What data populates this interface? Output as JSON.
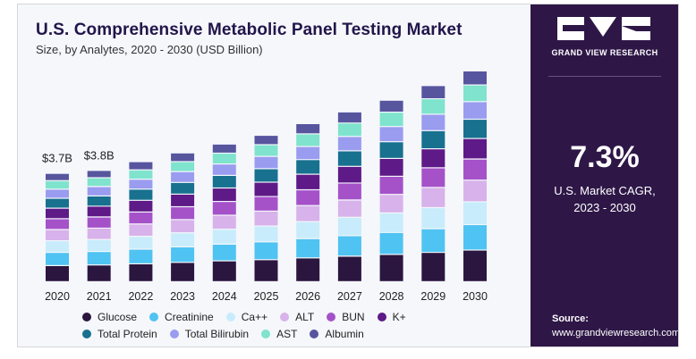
{
  "header": {
    "title": "U.S. Comprehensive Metabolic Panel Testing Market",
    "subtitle": "Size, by Analytes, 2020 - 2030 (USD Billion)"
  },
  "chart_data": {
    "type": "bar",
    "stacked": true,
    "categories": [
      "2020",
      "2021",
      "2022",
      "2023",
      "2024",
      "2025",
      "2026",
      "2027",
      "2028",
      "2029",
      "2030"
    ],
    "totals": [
      3.7,
      3.8,
      4.1,
      4.4,
      4.7,
      5.0,
      5.4,
      5.8,
      6.2,
      6.7,
      7.2
    ],
    "data_labels": [
      {
        "category": "2020",
        "text": "$3.7B"
      },
      {
        "category": "2021",
        "text": "$3.8B"
      }
    ],
    "series": [
      {
        "name": "Glucose",
        "color": "#2b1640",
        "values": [
          0.55,
          0.57,
          0.61,
          0.66,
          0.71,
          0.75,
          0.81,
          0.87,
          0.93,
          1.0,
          1.08
        ]
      },
      {
        "name": "Creatinine",
        "color": "#4fc3f2",
        "values": [
          0.45,
          0.46,
          0.5,
          0.53,
          0.57,
          0.61,
          0.66,
          0.7,
          0.75,
          0.81,
          0.87
        ]
      },
      {
        "name": "Ca++",
        "color": "#c8ecfb",
        "values": [
          0.4,
          0.41,
          0.44,
          0.48,
          0.51,
          0.54,
          0.58,
          0.63,
          0.67,
          0.72,
          0.78
        ]
      },
      {
        "name": "ALT",
        "color": "#d8b2ea",
        "values": [
          0.38,
          0.39,
          0.42,
          0.45,
          0.48,
          0.51,
          0.55,
          0.59,
          0.63,
          0.69,
          0.74
        ]
      },
      {
        "name": "BUN",
        "color": "#a552c9",
        "values": [
          0.37,
          0.38,
          0.41,
          0.44,
          0.47,
          0.5,
          0.54,
          0.58,
          0.62,
          0.67,
          0.72
        ]
      },
      {
        "name": "K+",
        "color": "#5e1a86",
        "values": [
          0.36,
          0.37,
          0.4,
          0.43,
          0.46,
          0.49,
          0.53,
          0.57,
          0.61,
          0.65,
          0.7
        ]
      },
      {
        "name": "Total Protein",
        "color": "#17718f",
        "values": [
          0.34,
          0.35,
          0.38,
          0.4,
          0.43,
          0.46,
          0.5,
          0.53,
          0.57,
          0.62,
          0.66
        ]
      },
      {
        "name": "Total Bilirubin",
        "color": "#9a9cf0",
        "values": [
          0.31,
          0.32,
          0.34,
          0.37,
          0.39,
          0.42,
          0.45,
          0.49,
          0.52,
          0.56,
          0.6
        ]
      },
      {
        "name": "AST",
        "color": "#7fe3cd",
        "values": [
          0.29,
          0.3,
          0.32,
          0.34,
          0.37,
          0.4,
          0.43,
          0.46,
          0.49,
          0.53,
          0.57
        ]
      },
      {
        "name": "Albumin",
        "color": "#58559f",
        "values": [
          0.25,
          0.25,
          0.28,
          0.3,
          0.31,
          0.32,
          0.35,
          0.38,
          0.41,
          0.45,
          0.48
        ]
      }
    ],
    "ylim": [
      0,
      7.2
    ]
  },
  "sidebar": {
    "brand": "GRAND VIEW RESEARCH",
    "cagr_value": "7.3%",
    "cagr_label_line1": "U.S. Market CAGR,",
    "cagr_label_line2": "2023 - 2030",
    "source_label": "Source:",
    "source_url": "www.grandviewresearch.com"
  },
  "colors": {
    "panel_bg": "#2e1747",
    "title": "#22154a"
  }
}
